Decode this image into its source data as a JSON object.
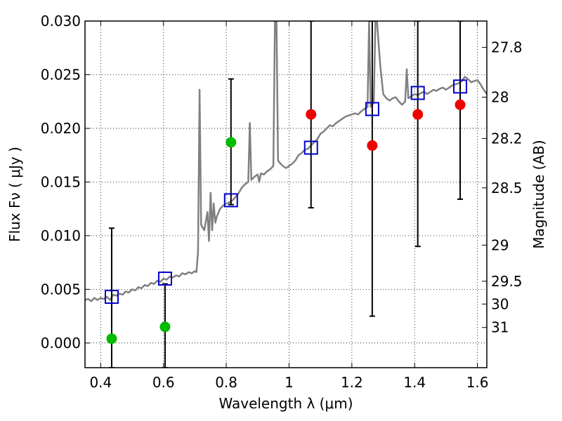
{
  "chart_data": {
    "type": "scatter",
    "xlabel": "Wavelength  λ (μm)",
    "ylabel": "Flux  Fν  ( μJy )",
    "ylabel_right": "Magnitude (AB)",
    "xlim": [
      0.35,
      1.63
    ],
    "ylim": [
      -0.0023,
      0.03
    ],
    "grid": true,
    "x_ticks": [
      {
        "value": 0.4,
        "label": "0.4"
      },
      {
        "value": 0.6,
        "label": "0.6"
      },
      {
        "value": 0.8,
        "label": "0.8"
      },
      {
        "value": 1.0,
        "label": "1"
      },
      {
        "value": 1.2,
        "label": "1.2"
      },
      {
        "value": 1.4,
        "label": "1.4"
      },
      {
        "value": 1.6,
        "label": "1.6"
      }
    ],
    "y_ticks": [
      {
        "value": 0.0,
        "label": "0.000"
      },
      {
        "value": 0.005,
        "label": "0.005"
      },
      {
        "value": 0.01,
        "label": "0.010"
      },
      {
        "value": 0.015,
        "label": "0.015"
      },
      {
        "value": 0.02,
        "label": "0.020"
      },
      {
        "value": 0.025,
        "label": "0.025"
      },
      {
        "value": 0.03,
        "label": "0.030"
      }
    ],
    "right_ticks": [
      {
        "value": 27.8,
        "label": "27.8"
      },
      {
        "value": 28.0,
        "label": "28"
      },
      {
        "value": 28.2,
        "label": "28.2"
      },
      {
        "value": 28.5,
        "label": "28.5"
      },
      {
        "value": 29.0,
        "label": "29"
      },
      {
        "value": 29.5,
        "label": "29.5"
      },
      {
        "value": 30.0,
        "label": "30"
      },
      {
        "value": 31.0,
        "label": "31"
      }
    ],
    "colors": {
      "spectrum": "#808080",
      "model": "#0000cc",
      "green": "#00bb00",
      "red": "#ee0000",
      "error": "#000000"
    },
    "spectrum": [
      [
        0.35,
        0.004
      ],
      [
        0.36,
        0.0041
      ],
      [
        0.37,
        0.0039
      ],
      [
        0.38,
        0.0042
      ],
      [
        0.39,
        0.004
      ],
      [
        0.4,
        0.0042
      ],
      [
        0.41,
        0.0041
      ],
      [
        0.42,
        0.0043
      ],
      [
        0.43,
        0.004
      ],
      [
        0.44,
        0.0045
      ],
      [
        0.45,
        0.0044
      ],
      [
        0.46,
        0.0046
      ],
      [
        0.47,
        0.0045
      ],
      [
        0.48,
        0.0048
      ],
      [
        0.49,
        0.0047
      ],
      [
        0.5,
        0.005
      ],
      [
        0.51,
        0.0049
      ],
      [
        0.52,
        0.0052
      ],
      [
        0.53,
        0.0051
      ],
      [
        0.54,
        0.0054
      ],
      [
        0.55,
        0.0053
      ],
      [
        0.56,
        0.0056
      ],
      [
        0.57,
        0.0055
      ],
      [
        0.58,
        0.0058
      ],
      [
        0.59,
        0.0057
      ],
      [
        0.6,
        0.006
      ],
      [
        0.61,
        0.0059
      ],
      [
        0.62,
        0.0062
      ],
      [
        0.63,
        0.0061
      ],
      [
        0.64,
        0.0063
      ],
      [
        0.65,
        0.0062
      ],
      [
        0.66,
        0.0065
      ],
      [
        0.67,
        0.0064
      ],
      [
        0.68,
        0.0066
      ],
      [
        0.69,
        0.0065
      ],
      [
        0.7,
        0.0067
      ],
      [
        0.705,
        0.0066
      ],
      [
        0.71,
        0.0085
      ],
      [
        0.715,
        0.0236
      ],
      [
        0.72,
        0.011
      ],
      [
        0.73,
        0.0105
      ],
      [
        0.74,
        0.0122
      ],
      [
        0.745,
        0.0095
      ],
      [
        0.75,
        0.014
      ],
      [
        0.755,
        0.0105
      ],
      [
        0.76,
        0.013
      ],
      [
        0.765,
        0.0112
      ],
      [
        0.77,
        0.0118
      ],
      [
        0.78,
        0.0125
      ],
      [
        0.79,
        0.0128
      ],
      [
        0.8,
        0.013
      ],
      [
        0.81,
        0.0131
      ],
      [
        0.82,
        0.0133
      ],
      [
        0.83,
        0.0136
      ],
      [
        0.84,
        0.014
      ],
      [
        0.85,
        0.0145
      ],
      [
        0.86,
        0.0148
      ],
      [
        0.87,
        0.015
      ],
      [
        0.875,
        0.0205
      ],
      [
        0.88,
        0.0152
      ],
      [
        0.89,
        0.0155
      ],
      [
        0.9,
        0.0157
      ],
      [
        0.905,
        0.015
      ],
      [
        0.91,
        0.0158
      ],
      [
        0.92,
        0.0157
      ],
      [
        0.93,
        0.016
      ],
      [
        0.94,
        0.0162
      ],
      [
        0.95,
        0.0165
      ],
      [
        0.955,
        0.03
      ],
      [
        0.96,
        0.03
      ],
      [
        0.965,
        0.017
      ],
      [
        0.97,
        0.0168
      ],
      [
        0.98,
        0.0165
      ],
      [
        0.99,
        0.0163
      ],
      [
        1.0,
        0.0165
      ],
      [
        1.01,
        0.0167
      ],
      [
        1.02,
        0.017
      ],
      [
        1.03,
        0.0175
      ],
      [
        1.04,
        0.0177
      ],
      [
        1.05,
        0.018
      ],
      [
        1.06,
        0.0181
      ],
      [
        1.07,
        0.0184
      ],
      [
        1.08,
        0.0187
      ],
      [
        1.09,
        0.019
      ],
      [
        1.1,
        0.0195
      ],
      [
        1.11,
        0.0197
      ],
      [
        1.12,
        0.02
      ],
      [
        1.13,
        0.0203
      ],
      [
        1.14,
        0.0202
      ],
      [
        1.15,
        0.0205
      ],
      [
        1.16,
        0.0207
      ],
      [
        1.17,
        0.0209
      ],
      [
        1.18,
        0.0211
      ],
      [
        1.19,
        0.0212
      ],
      [
        1.2,
        0.0213
      ],
      [
        1.21,
        0.0214
      ],
      [
        1.22,
        0.0213
      ],
      [
        1.23,
        0.0216
      ],
      [
        1.24,
        0.0218
      ],
      [
        1.25,
        0.022
      ],
      [
        1.255,
        0.03
      ],
      [
        1.26,
        0.022
      ],
      [
        1.27,
        0.0224
      ],
      [
        1.275,
        0.03
      ],
      [
        1.28,
        0.03
      ],
      [
        1.29,
        0.026
      ],
      [
        1.3,
        0.0232
      ],
      [
        1.31,
        0.0228
      ],
      [
        1.32,
        0.0226
      ],
      [
        1.33,
        0.0228
      ],
      [
        1.34,
        0.0229
      ],
      [
        1.35,
        0.0225
      ],
      [
        1.36,
        0.0222
      ],
      [
        1.37,
        0.0225
      ],
      [
        1.375,
        0.0255
      ],
      [
        1.38,
        0.0228
      ],
      [
        1.39,
        0.023
      ],
      [
        1.4,
        0.0232
      ],
      [
        1.41,
        0.0231
      ],
      [
        1.42,
        0.0233
      ],
      [
        1.43,
        0.0234
      ],
      [
        1.44,
        0.0232
      ],
      [
        1.45,
        0.0234
      ],
      [
        1.46,
        0.0236
      ],
      [
        1.47,
        0.0235
      ],
      [
        1.48,
        0.0237
      ],
      [
        1.49,
        0.0238
      ],
      [
        1.5,
        0.0236
      ],
      [
        1.51,
        0.0238
      ],
      [
        1.52,
        0.024
      ],
      [
        1.53,
        0.0241
      ],
      [
        1.54,
        0.0242
      ],
      [
        1.55,
        0.0244
      ],
      [
        1.56,
        0.0248
      ],
      [
        1.57,
        0.0246
      ],
      [
        1.58,
        0.0243
      ],
      [
        1.59,
        0.0244
      ],
      [
        1.6,
        0.0245
      ],
      [
        1.61,
        0.0241
      ],
      [
        1.62,
        0.0236
      ],
      [
        1.63,
        0.0232
      ]
    ],
    "model_points": [
      {
        "x": 0.435,
        "y": 0.0043
      },
      {
        "x": 0.605,
        "y": 0.006
      },
      {
        "x": 0.815,
        "y": 0.0133
      },
      {
        "x": 1.07,
        "y": 0.0182
      },
      {
        "x": 1.265,
        "y": 0.0218
      },
      {
        "x": 1.41,
        "y": 0.0233
      },
      {
        "x": 1.545,
        "y": 0.0239
      }
    ],
    "measurements": [
      {
        "x": 0.435,
        "y": 0.0004,
        "err_low": -0.0023,
        "err_high": 0.0107,
        "color": "green"
      },
      {
        "x": 0.605,
        "y": 0.0015,
        "err_low": -0.0023,
        "err_high": 0.0055,
        "color": "green"
      },
      {
        "x": 0.815,
        "y": 0.0187,
        "err_low": 0.0129,
        "err_high": 0.0246,
        "color": "green"
      },
      {
        "x": 1.07,
        "y": 0.0213,
        "err_low": 0.0126,
        "err_high": 0.03,
        "color": "red"
      },
      {
        "x": 1.265,
        "y": 0.0184,
        "err_low": 0.0025,
        "err_high": 0.03,
        "color": "red"
      },
      {
        "x": 1.41,
        "y": 0.0213,
        "err_low": 0.009,
        "err_high": 0.03,
        "color": "red"
      },
      {
        "x": 1.545,
        "y": 0.0222,
        "err_low": 0.0134,
        "err_high": 0.03,
        "color": "red"
      }
    ]
  }
}
